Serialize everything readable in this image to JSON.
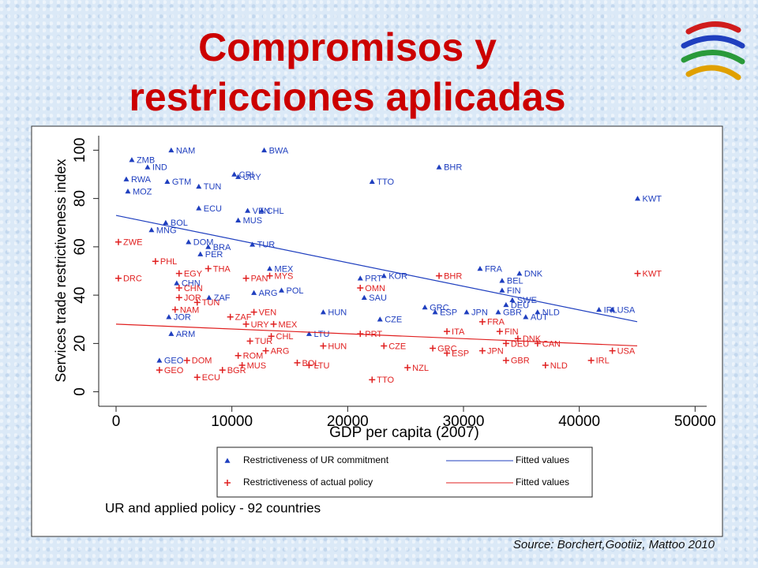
{
  "slide": {
    "title_lines": [
      "Compromisos y",
      "restricciones aplicadas"
    ],
    "source": "Source: Borchert,Gootiiz, Mattoo 2010"
  },
  "chart_data": {
    "type": "scatter",
    "xlabel": "GDP per capita (2007)",
    "ylabel": "Services trade restrictiveness index",
    "note": "UR and applied policy - 92 countries",
    "xlim": [
      -1500,
      51000
    ],
    "ylim": [
      -6,
      106
    ],
    "xticks": [
      0,
      10000,
      20000,
      30000,
      40000,
      50000
    ],
    "yticks": [
      0,
      20,
      40,
      60,
      80,
      100
    ],
    "series": [
      {
        "name": "Restrictiveness of UR commitment",
        "kind": "points",
        "marker": "triangle",
        "color": "#1f3fbf",
        "x": [
          4762,
          12789,
          27891,
          22109,
          10204,
          10544,
          45034,
          7143,
          4422,
          7143,
          11360,
          12585,
          10544,
          6259,
          7959,
          11769,
          7279,
          13265,
          31429,
          34830,
          33333,
          33333,
          23129,
          21088,
          5238,
          8027,
          14286,
          11905,
          17891,
          22789,
          26667,
          27551,
          30272,
          33000,
          36395,
          35374,
          34218,
          33673,
          41700,
          42857,
          21429,
          16667,
          4558,
          4762,
          3741,
          4286,
          3061,
          2721,
          1361,
          884,
          1020
        ],
        "values": [
          100,
          100,
          93,
          87,
          90,
          89,
          80,
          85,
          87,
          76,
          75,
          75,
          71,
          62,
          60,
          61,
          57,
          51,
          51,
          49,
          46,
          42,
          48,
          47,
          45,
          39,
          42,
          41,
          33,
          30,
          35,
          33,
          33,
          33,
          33,
          31,
          38,
          36,
          34,
          34,
          39,
          24,
          31,
          24,
          13,
          70,
          67,
          93,
          96,
          88,
          83
        ],
        "labels": [
          "NAM",
          "BWA",
          "BHR",
          "TTO",
          "CRI",
          "URY",
          "KWT",
          "TUN",
          "GTM",
          "ECU",
          "VEN",
          "CHL",
          "MUS",
          "DOM",
          "BRA",
          "TUR",
          "PER",
          "MEX",
          "FRA",
          "DNK",
          "BEL",
          "FIN",
          "KOR",
          "PRT",
          "CHN",
          "ZAF",
          "POL",
          "ARG",
          "HUN",
          "CZE",
          "GRC",
          "ESP",
          "JPN",
          "GBR",
          "NLD",
          "AUT",
          "SWE",
          "DEU",
          "IRL",
          "USA",
          "SAU",
          "LTU",
          "JOR",
          "ARM",
          "GEO",
          "BOL",
          "MNG",
          "IND",
          "ZMB",
          "RWA",
          "MOZ"
        ]
      },
      {
        "name": "Fitted values",
        "kind": "line",
        "color": "#1f3fbf",
        "x": [
          0,
          45000
        ],
        "values": [
          73,
          29
        ]
      },
      {
        "name": "Restrictiveness of actual policy",
        "kind": "points",
        "marker": "plus",
        "color": "#e02020",
        "x": [
          45034,
          204,
          204,
          7959,
          5442,
          3400,
          11224,
          13265,
          21088,
          27891,
          11905,
          13401,
          13605,
          11224,
          12925,
          11565,
          17891,
          10544,
          10884,
          9184,
          16667,
          15646,
          22109,
          25170,
          27347,
          28571,
          28571,
          21088,
          23129,
          31633,
          31633,
          33129,
          34694,
          36395,
          33673,
          33673,
          37075,
          41020,
          42857,
          7007,
          3741,
          6122,
          5442,
          7007,
          5102,
          9864,
          5442
        ],
        "values": [
          49,
          62,
          47,
          51,
          49,
          54,
          47,
          48,
          43,
          48,
          33,
          23,
          28,
          28,
          17,
          21,
          19,
          15,
          11,
          9,
          11,
          12,
          5,
          10,
          18,
          16,
          25,
          24,
          19,
          17,
          29,
          25,
          22,
          20,
          20,
          13,
          11,
          13,
          17,
          6,
          9,
          13,
          39,
          37,
          34,
          31,
          43
        ],
        "labels": [
          "KWT",
          "ZWE",
          "DRC",
          "THA",
          "EGY",
          "PHL",
          "PAN",
          "MYS",
          "OMN",
          "BHR",
          "VEN",
          "CHL",
          "MEX",
          "URY",
          "ARG",
          "TUR",
          "HUN",
          "ROM",
          "MUS",
          "BGR",
          "LTU",
          "BOL",
          "TTO",
          "NZL",
          "GRC",
          "ESP",
          "ITA",
          "PRT",
          "CZE",
          "JPN",
          "FRA",
          "FIN",
          "DNK",
          "CAN",
          "DEU",
          "GBR",
          "NLD",
          "IRL",
          "USA",
          "ECU",
          "GEO",
          "DOM",
          "JOR",
          "TUN",
          "NAM",
          "ZAF",
          "CHN"
        ]
      },
      {
        "name": "Fitted values",
        "kind": "line",
        "color": "#e02020",
        "x": [
          0,
          45000
        ],
        "values": [
          28,
          19
        ]
      }
    ]
  }
}
